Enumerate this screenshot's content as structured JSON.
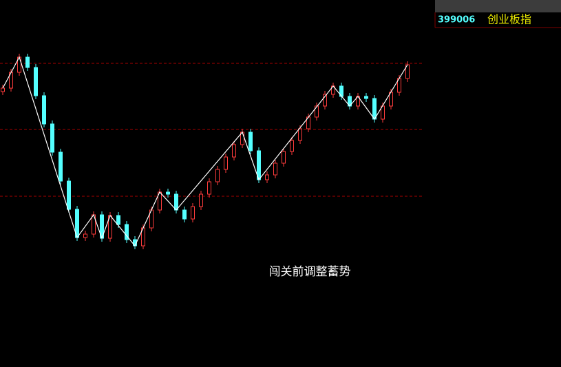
{
  "chart_data": {
    "type": "candlestick",
    "symbol": "399006",
    "name": "创业板指",
    "annotation": "闯关前调整蓄势",
    "ylim": [
      0,
      533
    ],
    "grid_levels": [
      248,
      345,
      441
    ],
    "up_color": "#ff3c3c",
    "down_color": "#54ffff",
    "zigzag_color": "#ffffff",
    "grid_color": "#a80000",
    "open": [
      400,
      405,
      428,
      450,
      435,
      394,
      353,
      312,
      270,
      229,
      188,
      193,
      221,
      187,
      220,
      207,
      185,
      176,
      202,
      228,
      254,
      251,
      228,
      215,
      233,
      251,
      269,
      287,
      305,
      323,
      341,
      314,
      272,
      279,
      296,
      313,
      329,
      346,
      363,
      379,
      396,
      408,
      393,
      379,
      393,
      390,
      360,
      379,
      399,
      419
    ],
    "high": [
      410,
      433,
      455,
      455,
      440,
      399,
      358,
      317,
      275,
      234,
      198,
      226,
      226,
      225,
      225,
      212,
      190,
      207,
      233,
      259,
      259,
      256,
      233,
      238,
      256,
      274,
      292,
      310,
      328,
      346,
      346,
      319,
      284,
      301,
      318,
      334,
      351,
      368,
      384,
      401,
      413,
      413,
      398,
      398,
      398,
      395,
      384,
      404,
      424,
      444
    ],
    "low": [
      395,
      400,
      423,
      430,
      389,
      348,
      307,
      265,
      224,
      183,
      183,
      188,
      182,
      182,
      202,
      180,
      171,
      171,
      197,
      223,
      246,
      223,
      210,
      210,
      228,
      246,
      264,
      282,
      300,
      318,
      309,
      267,
      267,
      274,
      291,
      308,
      324,
      341,
      358,
      374,
      391,
      388,
      374,
      374,
      385,
      355,
      355,
      374,
      394,
      414
    ],
    "close": [
      405,
      428,
      450,
      435,
      394,
      353,
      312,
      270,
      229,
      188,
      193,
      221,
      187,
      220,
      207,
      185,
      176,
      202,
      228,
      254,
      251,
      228,
      215,
      233,
      251,
      269,
      287,
      305,
      323,
      341,
      314,
      272,
      279,
      296,
      313,
      329,
      346,
      363,
      379,
      396,
      408,
      393,
      379,
      393,
      390,
      360,
      379,
      399,
      419,
      439
    ],
    "zigzag": {
      "x": [
        0,
        2,
        9,
        11,
        12,
        13,
        16,
        19,
        21,
        29,
        31,
        40,
        42,
        43,
        45,
        49
      ],
      "values": [
        405,
        450,
        188,
        221,
        187,
        220,
        176,
        254,
        228,
        341,
        272,
        408,
        379,
        393,
        360,
        439
      ]
    }
  }
}
